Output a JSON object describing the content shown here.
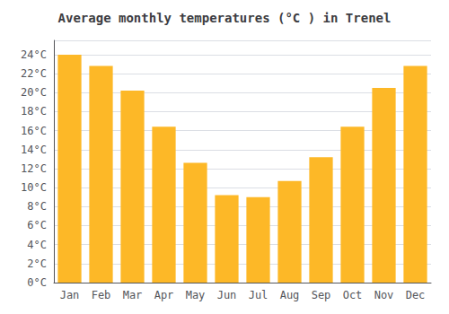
{
  "chart_data": {
    "type": "bar",
    "title": "Average monthly temperatures (°C ) in Trenel",
    "categories": [
      "Jan",
      "Feb",
      "Mar",
      "Apr",
      "May",
      "Jun",
      "Jul",
      "Aug",
      "Sep",
      "Oct",
      "Nov",
      "Dec"
    ],
    "values": [
      24.0,
      22.8,
      20.2,
      16.4,
      12.6,
      9.2,
      9.0,
      10.7,
      13.2,
      16.4,
      20.5,
      22.8
    ],
    "color": "#FDB827",
    "ylim": [
      0,
      25.5
    ],
    "yticks": [
      {
        "value": 0,
        "label": "0°C"
      },
      {
        "value": 2,
        "label": "2°C"
      },
      {
        "value": 4,
        "label": "4°C"
      },
      {
        "value": 6,
        "label": "6°C"
      },
      {
        "value": 8,
        "label": "8°C"
      },
      {
        "value": 10,
        "label": "10°C"
      },
      {
        "value": 12,
        "label": "12°C"
      },
      {
        "value": 14,
        "label": "14°C"
      },
      {
        "value": 16,
        "label": "16°C"
      },
      {
        "value": 18,
        "label": "18°C"
      },
      {
        "value": 20,
        "label": "20°C"
      },
      {
        "value": 22,
        "label": "22°C"
      },
      {
        "value": 24,
        "label": "24°C"
      }
    ],
    "grid": true
  }
}
